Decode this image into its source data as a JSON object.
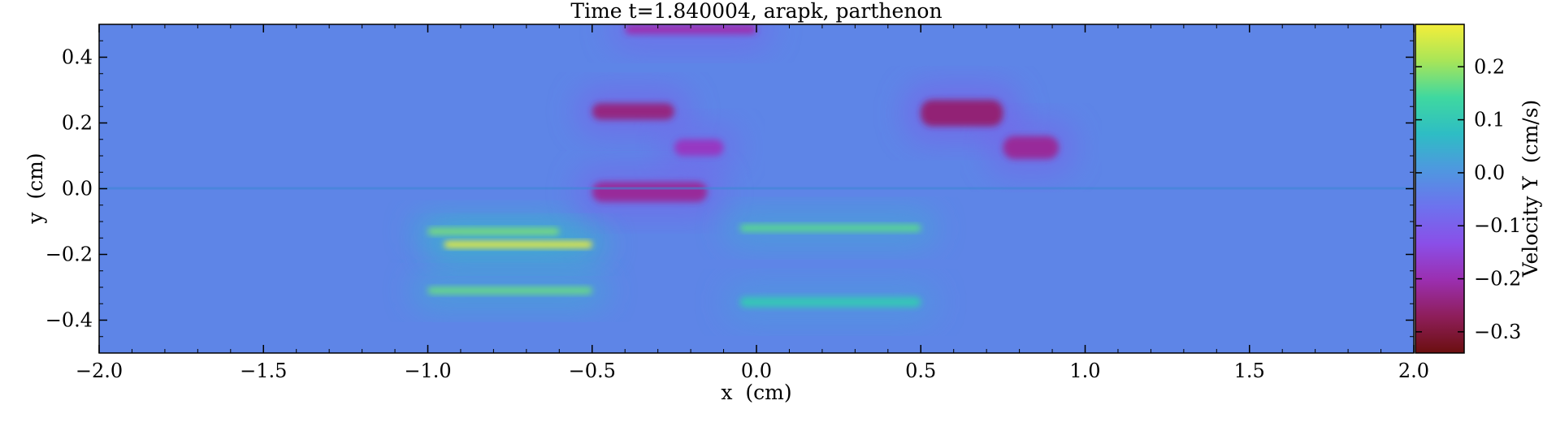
{
  "chart_data": {
    "type": "heatmap",
    "title": "Time t=1.840004, arapk, parthenon",
    "xlabel": "x  (cm)",
    "ylabel": "y  (cm)",
    "xlim": [
      -2.0,
      2.0
    ],
    "ylim": [
      -0.5,
      0.5
    ],
    "x_ticks": [
      -2.0,
      -1.5,
      -1.0,
      -0.5,
      0.0,
      0.5,
      1.0,
      1.5,
      2.0
    ],
    "x_tick_labels": [
      "−2.0",
      "−1.5",
      "−1.0",
      "−0.5",
      "0.0",
      "0.5",
      "1.0",
      "1.5",
      "2.0"
    ],
    "y_ticks": [
      -0.4,
      -0.2,
      0.0,
      0.2,
      0.4
    ],
    "y_tick_labels": [
      "−0.4",
      "−0.2",
      "0.0",
      "0.2",
      "0.4"
    ],
    "colorbar": {
      "label": "Velocity Y  (cm/s)",
      "range": [
        -0.34,
        0.28
      ],
      "ticks": [
        -0.3,
        -0.2,
        -0.1,
        0.0,
        0.1,
        0.2
      ],
      "tick_labels": [
        "−0.3",
        "−0.2",
        "−0.1",
        "0.0",
        "0.1",
        "0.2"
      ],
      "colormap": [
        "#6b0f0f",
        "#8e1e5a",
        "#9b2fb0",
        "#8a4fe8",
        "#6d72ee",
        "#4f97e0",
        "#2ebdc4",
        "#3fd8a0",
        "#a8e558",
        "#f4ee3a"
      ],
      "background_value": -0.03
    },
    "features": [
      {
        "kind": "band",
        "x": [
          -0.5,
          -0.25
        ],
        "y": [
          0.21,
          0.26
        ],
        "value": -0.24
      },
      {
        "kind": "band",
        "x": [
          0.5,
          0.75
        ],
        "y": [
          0.19,
          0.27
        ],
        "value": -0.25
      },
      {
        "kind": "band",
        "x": [
          -0.25,
          -0.1
        ],
        "y": [
          0.1,
          0.15
        ],
        "value": -0.18
      },
      {
        "kind": "band",
        "x": [
          0.75,
          0.92
        ],
        "y": [
          0.09,
          0.16
        ],
        "value": -0.22
      },
      {
        "kind": "band",
        "x": [
          -0.5,
          -0.15
        ],
        "y": [
          -0.04,
          0.02
        ],
        "value": -0.22
      },
      {
        "kind": "band",
        "x": [
          -0.4,
          0.0
        ],
        "y": [
          0.47,
          0.5
        ],
        "value": -0.2
      },
      {
        "kind": "band",
        "x": [
          -0.95,
          -0.5
        ],
        "y": [
          -0.18,
          -0.16
        ],
        "value": 0.27
      },
      {
        "kind": "band",
        "x": [
          -1.0,
          -0.6
        ],
        "y": [
          -0.14,
          -0.12
        ],
        "value": 0.18
      },
      {
        "kind": "band",
        "x": [
          -1.0,
          -0.5
        ],
        "y": [
          -0.32,
          -0.3
        ],
        "value": 0.17
      },
      {
        "kind": "band",
        "x": [
          -0.05,
          0.5
        ],
        "y": [
          -0.13,
          -0.11
        ],
        "value": 0.16
      },
      {
        "kind": "band",
        "x": [
          -0.05,
          0.5
        ],
        "y": [
          -0.36,
          -0.33
        ],
        "value": 0.1
      }
    ],
    "grid": false
  }
}
